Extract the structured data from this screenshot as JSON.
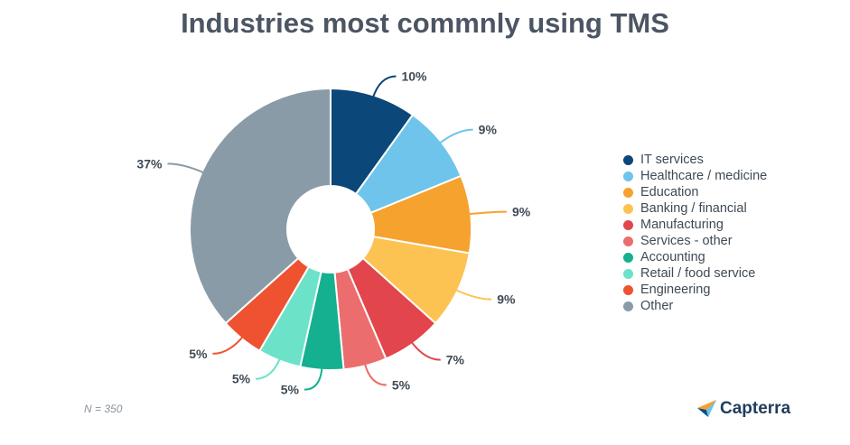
{
  "title": "Industries most commnly using TMS",
  "note": "N = 350",
  "brand": {
    "name": "Capterra",
    "logo_icon": "capterra-arrow-icon"
  },
  "chart_data": {
    "type": "pie",
    "donut": true,
    "legend_position": "right",
    "categories": [
      "IT services",
      "Healthcare / medicine",
      "Education",
      "Banking / financial",
      "Manufacturing",
      "Services - other",
      "Accounting",
      "Retail / food service",
      "Engineering",
      "Other"
    ],
    "values": [
      10,
      9,
      9,
      9,
      7,
      5,
      5,
      5,
      5,
      37
    ],
    "labels": [
      "10%",
      "9%",
      "9%",
      "9%",
      "7%",
      "5%",
      "5%",
      "5%",
      "5%",
      "37%"
    ],
    "colors": [
      "#0b4778",
      "#6ec4ea",
      "#f6a22e",
      "#fdc352",
      "#e2454b",
      "#ec6d6d",
      "#15b08f",
      "#6ce2c8",
      "#ee5230",
      "#8a9ba8"
    ]
  }
}
